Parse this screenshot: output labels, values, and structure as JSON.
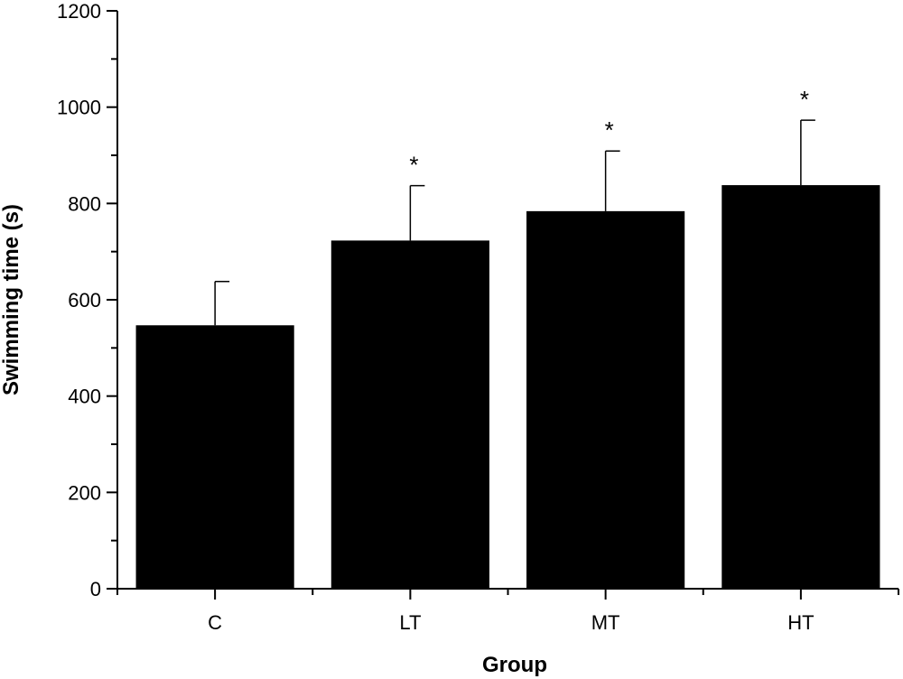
{
  "chart_data": {
    "type": "bar",
    "xlabel": "Group",
    "ylabel": "Swimming time (s)",
    "categories": [
      "C",
      "LT",
      "MT",
      "HT"
    ],
    "values": [
      547,
      723,
      784,
      838
    ],
    "error_upper": [
      638,
      837,
      909,
      973
    ],
    "significance": [
      "",
      "*",
      "*",
      "*"
    ],
    "ylim": [
      0,
      1200
    ],
    "yticks": [
      0,
      200,
      400,
      600,
      800,
      1000,
      1200
    ],
    "bar_color": "#000000",
    "grid": false
  }
}
